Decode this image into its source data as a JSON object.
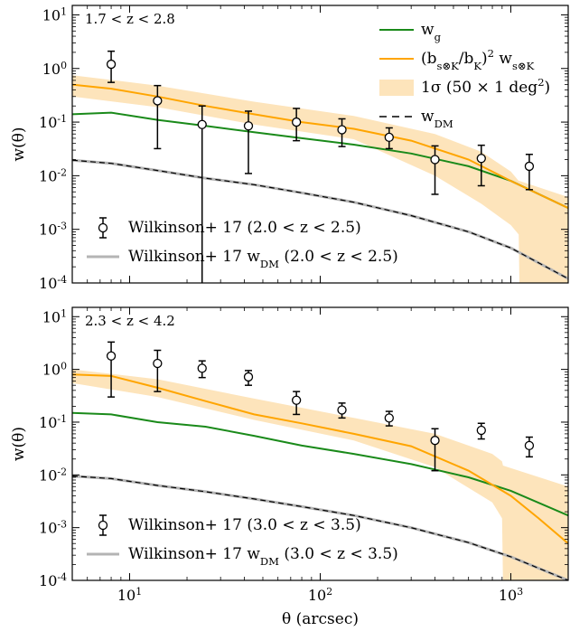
{
  "figure": {
    "x_axis_label": "θ (arcsec)",
    "x_tick_labels": [
      "10^1",
      "10^2",
      "10^3"
    ],
    "y_tick_labels": [
      "10^1",
      "10^0",
      "10^-1",
      "10^-2",
      "10^-3",
      "10^-4"
    ]
  },
  "colors": {
    "w_g": "#1a8a1a",
    "model": "#ffa500",
    "band": "#fde4bb",
    "dm_dash": "#000000",
    "dm_ref": "#b4b4b4",
    "points": "#000000"
  },
  "chart_data": [
    {
      "type": "line",
      "annotation": "1.7 < z < 2.8",
      "ylabel": "w(θ)",
      "xlabel": "",
      "xscale": "log",
      "yscale": "log",
      "xlim": [
        5,
        2000
      ],
      "ylim": [
        0.0001,
        15
      ],
      "legend": {
        "placement": "top-right",
        "entries": [
          "w_g",
          "(b_s⊗K/b_K)^2 w_s⊗K",
          "1σ (50 × 1 deg^2)",
          "w_DM"
        ]
      },
      "legend2": {
        "placement": "bottom-left",
        "entries": [
          "Wilkinson+ 17 (2.0 < z < 2.5)",
          "Wilkinson+ 17 w_DM (2.0 < z < 2.5)"
        ]
      },
      "series": [
        {
          "name": "w_g",
          "x": [
            5,
            8,
            14,
            25,
            45,
            80,
            150,
            300,
            600,
            1000,
            2000
          ],
          "y": [
            0.14,
            0.15,
            0.11,
            0.085,
            0.065,
            0.05,
            0.038,
            0.026,
            0.015,
            0.008,
            0.0025
          ]
        },
        {
          "name": "(b_s⊗K/b_K)^2 w_s⊗K",
          "x": [
            5,
            8,
            14,
            25,
            45,
            80,
            150,
            300,
            600,
            1000,
            2000
          ],
          "y": [
            0.5,
            0.42,
            0.3,
            0.2,
            0.14,
            0.1,
            0.075,
            0.045,
            0.02,
            0.008,
            0.0025
          ]
        },
        {
          "name": "w_DM",
          "x": [
            5,
            8,
            14,
            25,
            45,
            80,
            150,
            300,
            600,
            1000,
            2000
          ],
          "y": [
            0.0195,
            0.017,
            0.0125,
            0.009,
            0.0068,
            0.0048,
            0.0032,
            0.0018,
            0.0009,
            0.00045,
            0.00012
          ]
        }
      ],
      "band": {
        "name": "1σ (50 × 1 deg^2)",
        "x": [
          5,
          14,
          45,
          150,
          400,
          700,
          1000,
          1100,
          1110,
          2000
        ],
        "lower": [
          0.3,
          0.19,
          0.09,
          0.048,
          0.01,
          0.003,
          0.0012,
          0.0008,
          0.0001,
          0.0001
        ],
        "upper": [
          0.75,
          0.48,
          0.24,
          0.13,
          0.06,
          0.028,
          0.012,
          0.008,
          0.008,
          0.004
        ]
      },
      "points": {
        "name": "Wilkinson+ 17 (2.0 < z < 2.5)",
        "x": [
          8,
          14,
          24,
          42,
          75,
          130,
          230,
          400,
          700,
          1250
        ],
        "y": [
          1.2,
          0.25,
          0.09,
          0.085,
          0.1,
          0.072,
          0.052,
          0.02,
          0.021,
          0.015
        ],
        "lo": [
          0.55,
          0.032,
          0.0001,
          0.011,
          0.045,
          0.035,
          0.032,
          0.0045,
          0.0065,
          0.0055
        ],
        "hi": [
          2.1,
          0.48,
          0.2,
          0.16,
          0.18,
          0.115,
          0.078,
          0.036,
          0.037,
          0.025
        ]
      }
    },
    {
      "type": "line",
      "annotation": "2.3 < z < 4.2",
      "ylabel": "w(θ)",
      "xlabel": "θ (arcsec)",
      "xscale": "log",
      "yscale": "log",
      "xlim": [
        5,
        2000
      ],
      "ylim": [
        0.0001,
        15
      ],
      "legend2": {
        "placement": "bottom-left",
        "entries": [
          "Wilkinson+ 17 (3.0 < z < 3.5)",
          "Wilkinson+ 17 w_DM (3.0 < z < 3.5)"
        ]
      },
      "series": [
        {
          "name": "w_g",
          "x": [
            5,
            8,
            14,
            25,
            45,
            80,
            150,
            300,
            600,
            1000,
            2000
          ],
          "y": [
            0.15,
            0.14,
            0.1,
            0.082,
            0.055,
            0.036,
            0.025,
            0.016,
            0.009,
            0.005,
            0.0017
          ]
        },
        {
          "name": "(b_s⊗K/b_K)^2 w_s⊗K",
          "x": [
            5,
            8,
            14,
            25,
            45,
            80,
            150,
            300,
            600,
            1000,
            1400,
            2000
          ],
          "y": [
            0.8,
            0.75,
            0.45,
            0.25,
            0.14,
            0.095,
            0.06,
            0.035,
            0.012,
            0.004,
            0.0015,
            0.0005
          ]
        },
        {
          "name": "w_DM",
          "x": [
            5,
            8,
            14,
            25,
            45,
            80,
            150,
            300,
            600,
            1000,
            2000
          ],
          "y": [
            0.0095,
            0.0085,
            0.0063,
            0.0048,
            0.0035,
            0.0025,
            0.0017,
            0.001,
            0.00052,
            0.00028,
            8e-05
          ]
        }
      ],
      "band": {
        "name": "1σ",
        "x": [
          5,
          14,
          45,
          150,
          400,
          800,
          900,
          910,
          2000
        ],
        "lower": [
          0.55,
          0.3,
          0.11,
          0.045,
          0.014,
          0.003,
          0.0015,
          0.0001,
          0.0001
        ],
        "upper": [
          1.0,
          0.65,
          0.28,
          0.12,
          0.06,
          0.025,
          0.018,
          0.015,
          0.006
        ]
      },
      "points": {
        "name": "Wilkinson+ 17 (3.0 < z < 3.5)",
        "x": [
          8,
          14,
          24,
          42,
          75,
          130,
          230,
          400,
          700,
          1250
        ],
        "y": [
          1.8,
          1.3,
          1.05,
          0.72,
          0.26,
          0.17,
          0.12,
          0.045,
          0.07,
          0.036
        ],
        "lo": [
          0.3,
          0.38,
          0.7,
          0.5,
          0.14,
          0.12,
          0.085,
          0.012,
          0.048,
          0.022
        ],
        "hi": [
          3.3,
          2.3,
          1.45,
          0.95,
          0.38,
          0.23,
          0.16,
          0.075,
          0.095,
          0.052
        ]
      }
    }
  ]
}
